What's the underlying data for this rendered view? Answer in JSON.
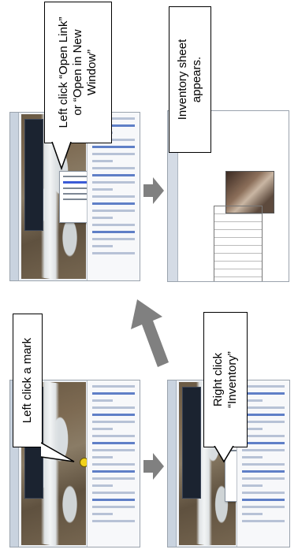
{
  "callouts": {
    "top_left_l1": "Left click “Open Link”",
    "top_left_l2": "or “Open in New",
    "top_left_l3": "Window”",
    "top_right_l1": "Inventory sheet",
    "top_right_l2": "appears.",
    "bottom_left_l1": "Left click a mark",
    "bottom_right_l1": "Right click",
    "bottom_right_l2": "“Inventory”"
  },
  "colors": {
    "arrow": "#808080",
    "mark": "#f2d21b",
    "callout_border": "#000000"
  }
}
